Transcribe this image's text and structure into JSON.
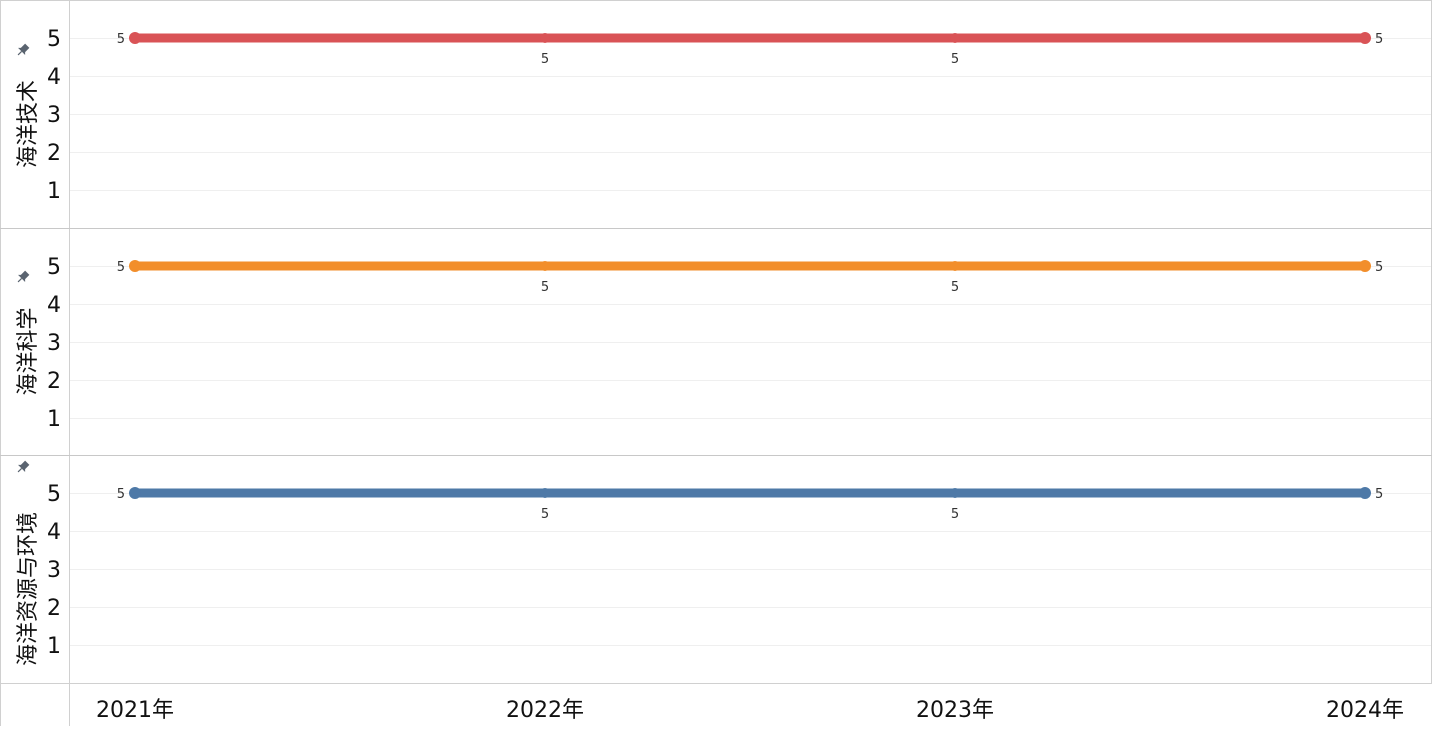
{
  "chart_data": {
    "type": "line",
    "facet": "rows",
    "x": [
      "2021年",
      "2022年",
      "2023年",
      "2024年"
    ],
    "ylim": [
      0,
      5.8
    ],
    "yticks": [
      1,
      2,
      3,
      4,
      5
    ],
    "grid": true,
    "panels": [
      {
        "label": "海洋技术",
        "color": "#d95356",
        "values": [
          5,
          5,
          5,
          5
        ],
        "data_labels": [
          "5",
          "5",
          "5",
          "5"
        ],
        "pin_icon": "pin-icon"
      },
      {
        "label": "海洋科学",
        "color": "#f28e2b",
        "values": [
          5,
          5,
          5,
          5
        ],
        "data_labels": [
          "5",
          "5",
          "5",
          "5"
        ],
        "pin_icon": "pin-icon"
      },
      {
        "label": "海洋资源与环境",
        "color": "#4e79a7",
        "values": [
          5,
          5,
          5,
          5
        ],
        "data_labels": [
          "5",
          "5",
          "5",
          "5"
        ],
        "pin_icon": "pin-icon"
      }
    ]
  }
}
